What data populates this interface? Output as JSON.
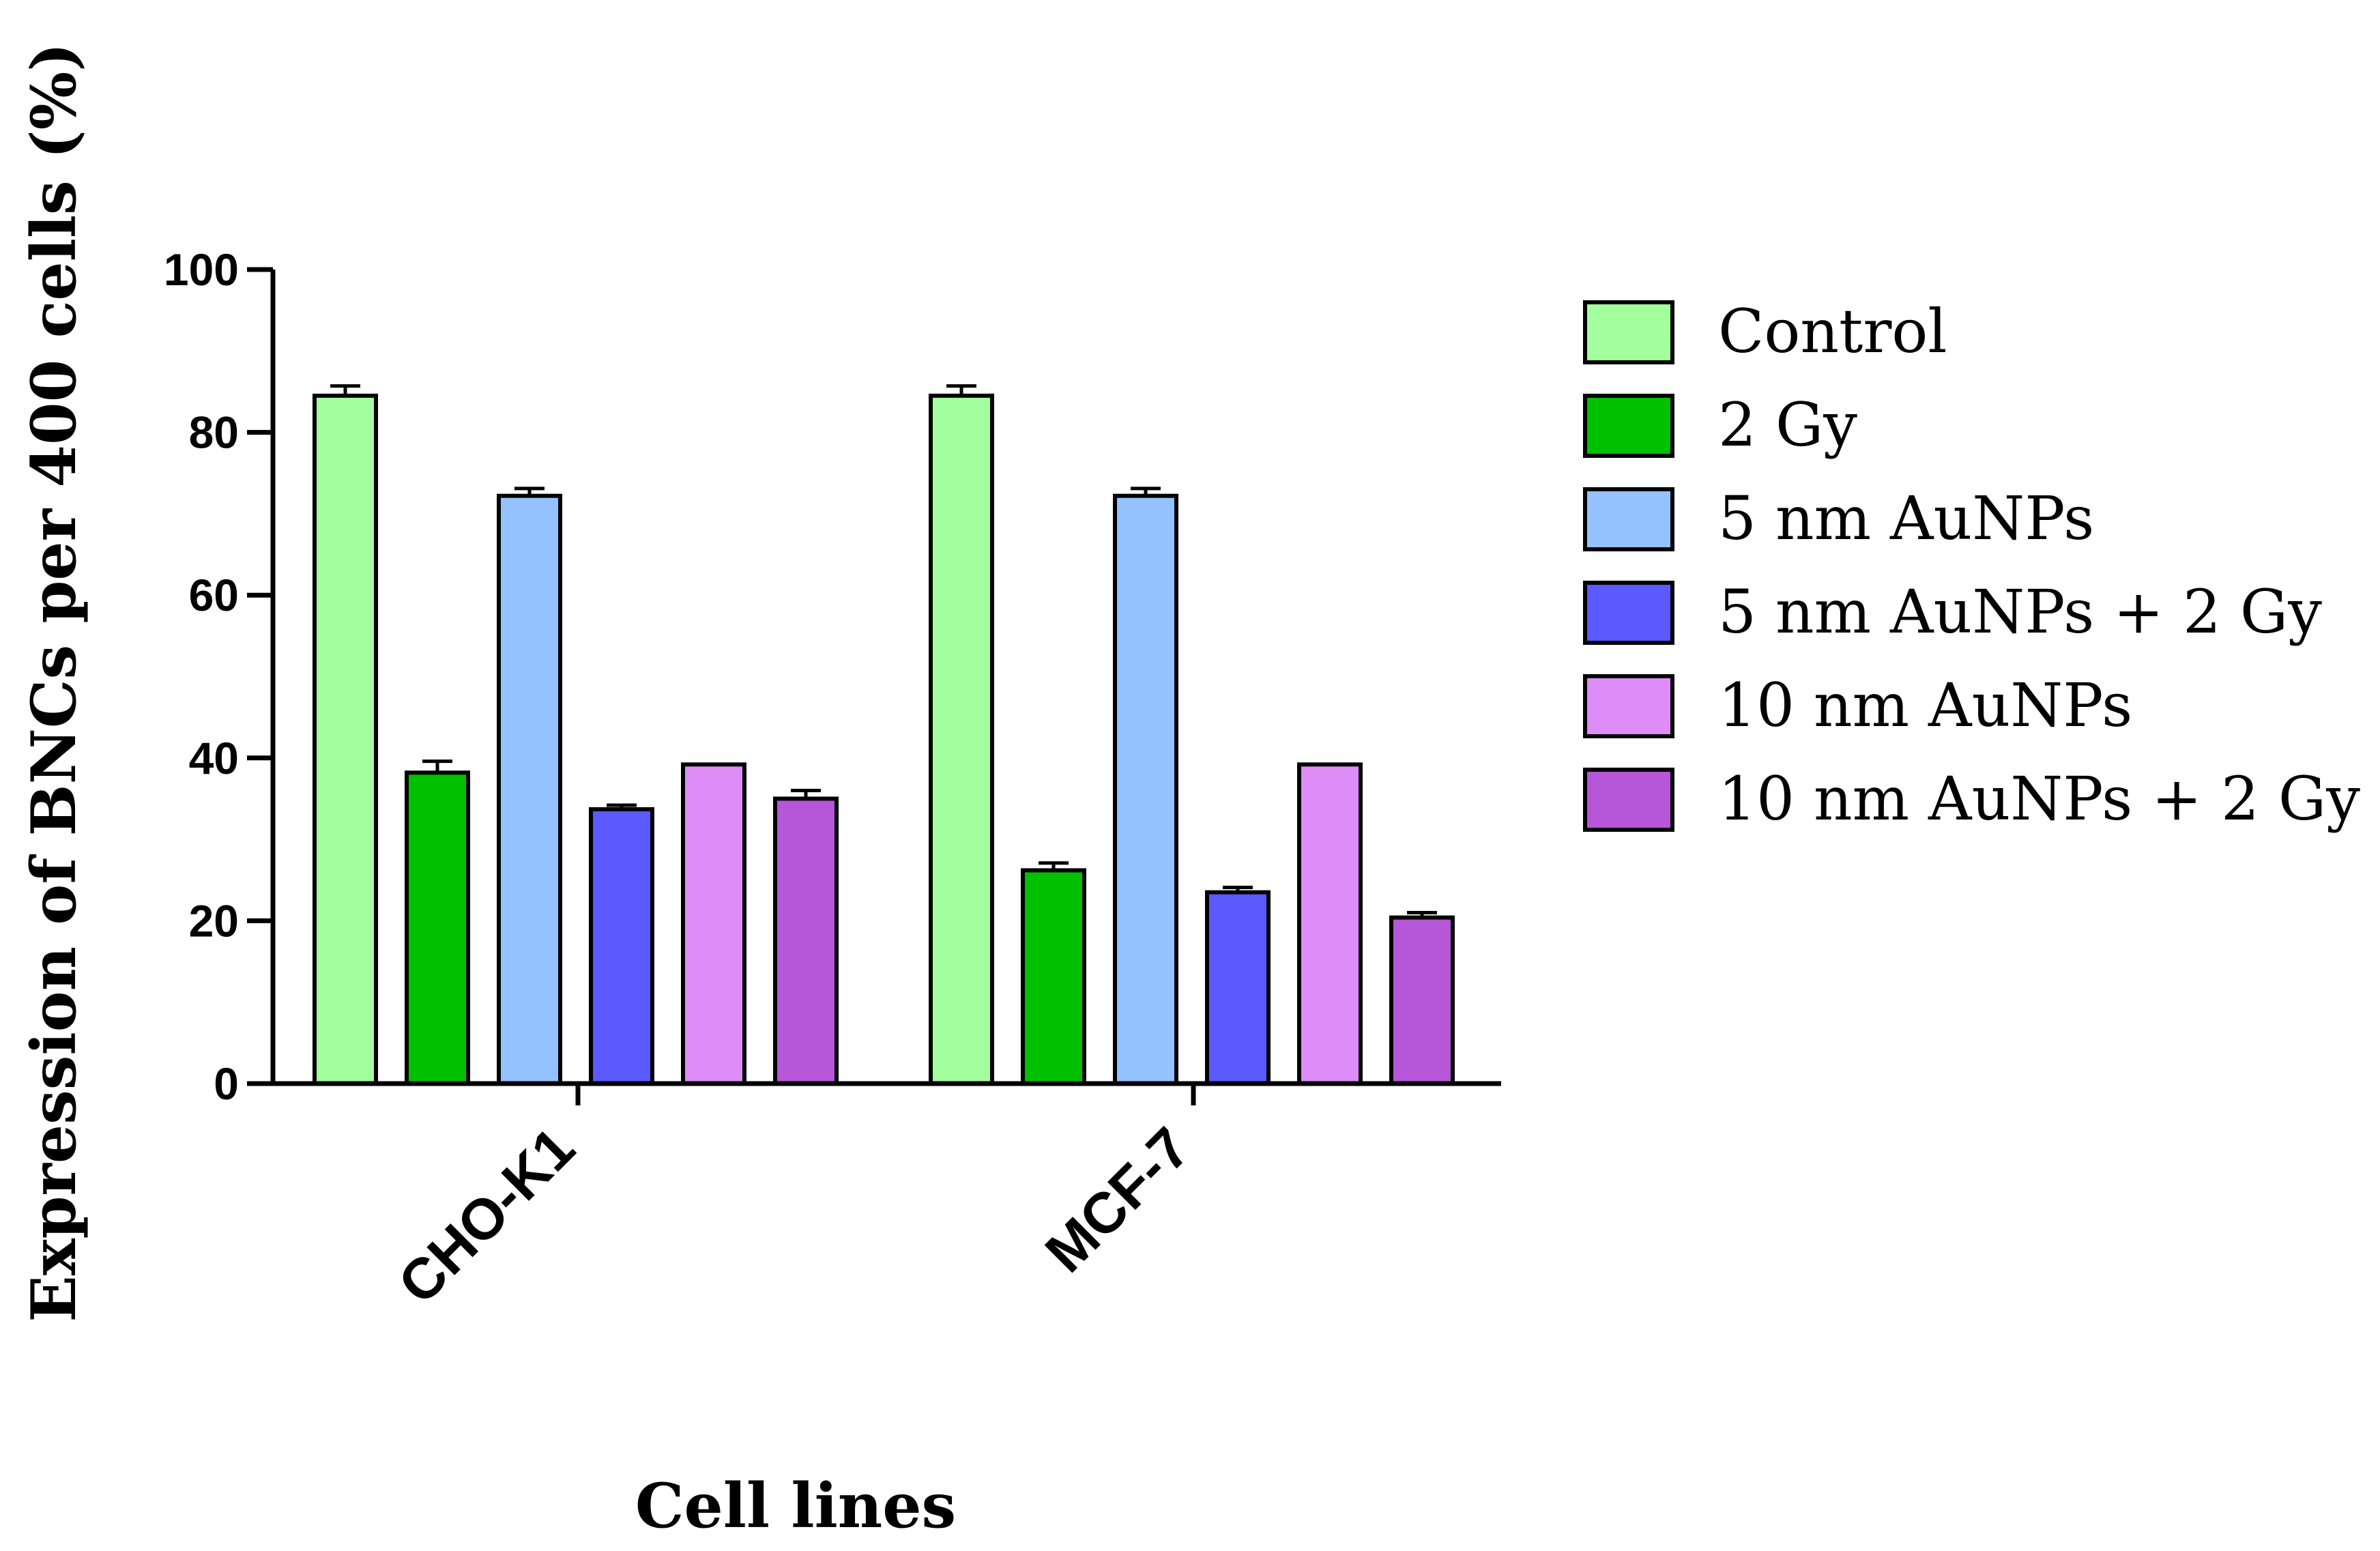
{
  "chart_data": {
    "type": "bar",
    "title": "",
    "xlabel": "Cell lines",
    "ylabel": "Expression of BNCs per 400 cells (%)",
    "ylim": [
      0,
      100
    ],
    "yticks": [
      "0",
      "20",
      "40",
      "60",
      "80",
      "100"
    ],
    "grid": false,
    "legend_position": "right",
    "categories": [
      "CHO-K1",
      "MCF-7"
    ],
    "series": [
      {
        "name": "Control",
        "color": "#a3ff9e",
        "values": [
          84.5,
          84.5
        ],
        "errors": [
          1.2,
          1.2
        ]
      },
      {
        "name": "2 Gy",
        "color": "#00c000",
        "values": [
          38.2,
          26.2
        ],
        "errors": [
          1.4,
          0.9
        ]
      },
      {
        "name": "5 nm AuNPs",
        "color": "#94c2ff",
        "values": [
          72.2,
          72.2
        ],
        "errors": [
          0.9,
          0.9
        ]
      },
      {
        "name": "5 nm AuNPs + 2 Gy",
        "color": "#5a5aff",
        "values": [
          33.7,
          23.5
        ],
        "errors": [
          0.5,
          0.6
        ]
      },
      {
        "name": "10 nm AuNPs",
        "color": "#dd8cf8",
        "values": [
          39.2,
          39.2
        ],
        "errors": [
          0.0,
          0.0
        ]
      },
      {
        "name": "10 nm AuNPs + 2 Gy",
        "color": "#b657d9",
        "values": [
          35.0,
          20.4
        ],
        "errors": [
          1.0,
          0.6
        ]
      }
    ]
  }
}
